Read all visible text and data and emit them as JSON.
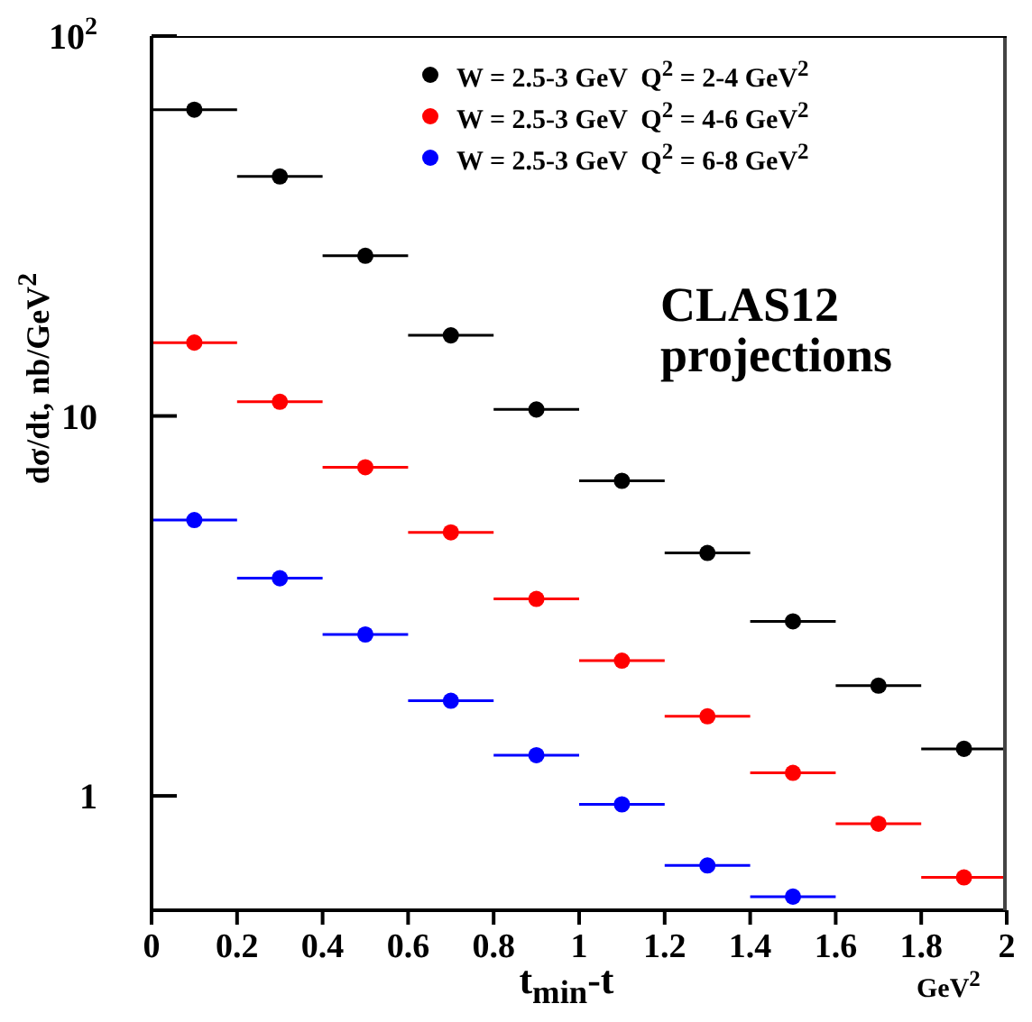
{
  "chart_data": {
    "type": "scatter",
    "xlabel": "t$_{min}$-t",
    "ylabel": "dσ/dt, nb/GeV$^{2}$",
    "annotations": [
      "CLAS12 projections",
      "GeV$^{2}$"
    ],
    "xlim": [
      0,
      2
    ],
    "xticks": [
      0,
      0.2,
      0.4,
      0.6,
      0.8,
      1,
      1.2,
      1.4,
      1.6,
      1.8,
      2
    ],
    "ylim": [
      0.5,
      100
    ],
    "yticks": [
      1,
      10,
      {
        "value": 100,
        "label": "10$^{2}$"
      }
    ],
    "log": "y",
    "grid": false,
    "legend": "top right",
    "marker": "circle",
    "series": [
      {
        "name": "W = 2.5-3 GeV  Q$^{2}$ = 2-4 GeV$^{2}$",
        "color": "#000000",
        "x": [
          0.1,
          0.3,
          0.5,
          0.7,
          0.9,
          1.1,
          1.3,
          1.5,
          1.7,
          1.9
        ],
        "values": [
          64,
          42.7,
          26.4,
          16.3,
          10.4,
          6.75,
          4.36,
          2.88,
          1.95,
          1.33
        ],
        "xerrors": [
          0.1,
          0.1,
          0.1,
          0.1,
          0.1,
          0.1,
          0.1,
          0.1,
          0.1,
          0.1
        ]
      },
      {
        "name": "W = 2.5-3 GeV  Q$^{2}$ = 4-6 GeV$^{2}$",
        "color": "#ff0000",
        "x": [
          0.1,
          0.3,
          0.5,
          0.7,
          0.9,
          1.1,
          1.3,
          1.5,
          1.7,
          1.9
        ],
        "values": [
          15.6,
          10.9,
          7.33,
          4.94,
          3.3,
          2.27,
          1.62,
          1.15,
          0.845,
          0.61
        ],
        "xerrors": [
          0.1,
          0.1,
          0.1,
          0.1,
          0.1,
          0.1,
          0.1,
          0.1,
          0.1,
          0.1
        ]
      },
      {
        "name": "W = 2.5-3 GeV  Q$^{2}$ = 6-8 GeV$^{2}$",
        "color": "#0000ff",
        "x": [
          0.1,
          0.3,
          0.5,
          0.7,
          0.9,
          1.1,
          1.3,
          1.5
        ],
        "values": [
          5.32,
          3.74,
          2.66,
          1.78,
          1.28,
          0.95,
          0.656,
          0.543
        ],
        "xerrors": [
          0.1,
          0.1,
          0.1,
          0.1,
          0.1,
          0.1,
          0.1,
          0.1
        ]
      }
    ]
  }
}
